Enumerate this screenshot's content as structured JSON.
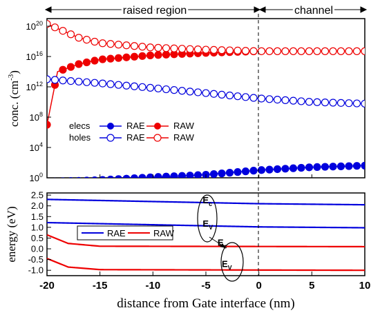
{
  "chart_data": [
    {
      "type": "scatter",
      "ylabel_main": "conc. (cm",
      "ylabel_sup": "-3",
      "ylabel_tail": ")",
      "yscale": "log",
      "ylim_exp": [
        0,
        21
      ],
      "xlim": [
        -20,
        10
      ],
      "yticks": [
        {
          "base": "10",
          "exp": "0",
          "value": 1
        },
        {
          "base": "10",
          "exp": "4",
          "value": 10000
        },
        {
          "base": "10",
          "exp": "8",
          "value": 100000000
        },
        {
          "base": "10",
          "exp": "12",
          "value": 1000000000000
        },
        {
          "base": "10",
          "exp": "16",
          "value": 10000000000000000
        },
        {
          "base": "10",
          "exp": "20",
          "value": 100000000000000000000
        }
      ],
      "regions": [
        {
          "label": "raised region",
          "from": -20,
          "to": 0
        },
        {
          "label": "channel",
          "from": 0,
          "to": 10
        }
      ],
      "legend": {
        "row_labels": [
          "elecs",
          "holes"
        ],
        "col_labels": [
          "RAE",
          "RAW"
        ],
        "placement": "left"
      },
      "series": [
        {
          "name": "elecs RAE",
          "color": "#0000dd",
          "filled": true,
          "model": "elecs_rae",
          "points": [
            [
              -20,
              0.3
            ],
            [
              -15,
              0.5
            ],
            [
              -10,
              1.2
            ],
            [
              -5,
              2.5
            ],
            [
              0,
              10
            ],
            [
              5,
              25
            ],
            [
              10,
              40
            ]
          ]
        },
        {
          "name": "elecs RAW",
          "color": "#ee0000",
          "filled": true,
          "model": "elecs_raw",
          "points": [
            [
              -20,
              10000000.0
            ],
            [
              -19,
              100000000000000.0
            ],
            [
              -17,
              1000000000000000.0
            ],
            [
              -15,
              4000000000000000.0
            ],
            [
              -10,
              1.5e+16
            ],
            [
              -5,
              3e+16
            ],
            [
              0,
              5e+16
            ],
            [
              5,
              5e+16
            ],
            [
              10,
              5e+16
            ]
          ]
        },
        {
          "name": "holes RAE",
          "color": "#0000dd",
          "filled": false,
          "model": "holes_rae",
          "points": [
            [
              -20,
              10000000000000.0
            ],
            [
              -15,
              3000000000000.0
            ],
            [
              -10,
              700000000000.0
            ],
            [
              -5,
              150000000000.0
            ],
            [
              0,
              30000000000.0
            ],
            [
              5,
              10000000000.0
            ],
            [
              10,
              6000000000.0
            ]
          ]
        },
        {
          "name": "holes RAW",
          "color": "#ee0000",
          "filled": false,
          "model": "holes_raw",
          "points": [
            [
              -20,
              2e+20
            ],
            [
              -17,
              3e+18
            ],
            [
              -15,
              6e+17
            ],
            [
              -10,
              1.5e+17
            ],
            [
              -5,
              8e+16
            ],
            [
              0,
              5e+16
            ],
            [
              5,
              5e+16
            ],
            [
              10,
              5e+16
            ]
          ]
        }
      ]
    },
    {
      "type": "line",
      "ylabel": "energy (eV)",
      "xlabel": "distance from Gate interface (nm)",
      "xlim": [
        -20,
        10
      ],
      "ylim": [
        -1.25,
        2.6
      ],
      "xticks": [
        "-20",
        "-15",
        "-10",
        "-5",
        "0",
        "5",
        "10"
      ],
      "yticks": [
        "2.5",
        "2.0",
        "1.5",
        "1.0",
        "0.5",
        "0.0",
        "-0.5",
        "-1.0"
      ],
      "ytick_values": [
        2.5,
        2.0,
        1.5,
        1.0,
        0.5,
        0.0,
        -0.5,
        -1.0
      ],
      "legend": [
        "RAE",
        "RAW"
      ],
      "annotations": [
        {
          "base": "E",
          "sub": "c",
          "x": -5.3,
          "y": 2.12
        },
        {
          "base": "E",
          "sub": "V",
          "x": -5.3,
          "y": 1.02
        },
        {
          "base": "E",
          "sub": "c",
          "x": -3.9,
          "y": 0.15
        },
        {
          "base": "E",
          "sub": "V",
          "x": -3.5,
          "y": -0.85
        }
      ],
      "series": [
        {
          "name": "RAE",
          "color": "#0000dd",
          "model": "ec_rae",
          "points": [
            [
              -20,
              2.3
            ],
            [
              -10,
              2.2
            ],
            [
              0,
              2.1
            ],
            [
              10,
              2.05
            ]
          ]
        },
        {
          "name": "RAE",
          "color": "#0000dd",
          "model": "ev_rae",
          "points": [
            [
              -20,
              1.22
            ],
            [
              -10,
              1.12
            ],
            [
              0,
              1.02
            ],
            [
              10,
              0.98
            ]
          ]
        },
        {
          "name": "RAW",
          "color": "#ee0000",
          "model": "ec_raw",
          "points": [
            [
              -20,
              0.65
            ],
            [
              -18,
              0.25
            ],
            [
              -15,
              0.12
            ],
            [
              10,
              0.1
            ]
          ]
        },
        {
          "name": "RAW",
          "color": "#ee0000",
          "model": "ev_raw",
          "points": [
            [
              -20,
              -0.45
            ],
            [
              -18,
              -0.85
            ],
            [
              -15,
              -0.97
            ],
            [
              10,
              -1.0
            ]
          ]
        }
      ]
    }
  ]
}
